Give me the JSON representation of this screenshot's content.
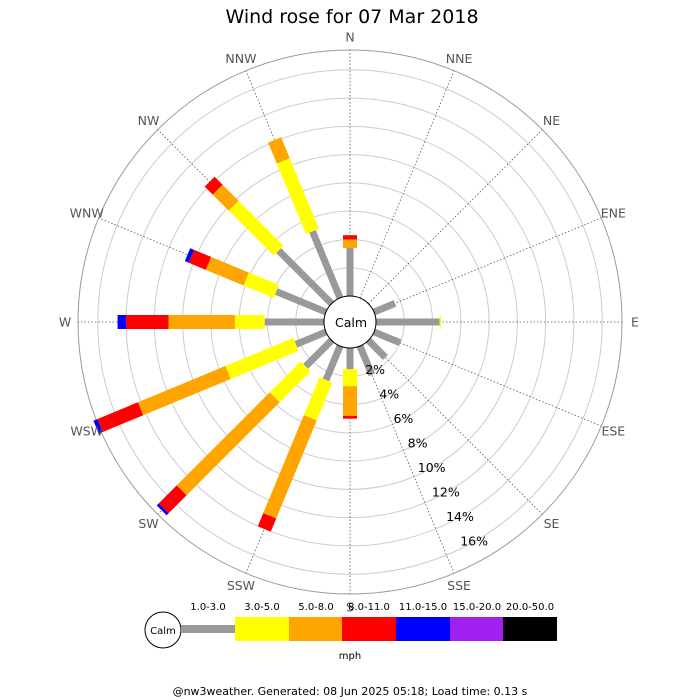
{
  "title": "Wind rose for 07 Mar 2018",
  "footer": "@nw3weather. Generated: 08 Jun 2025 05:18; Load time: 0.13 s",
  "calm_label": "Calm",
  "unit": "mph",
  "chart_data": {
    "type": "wind-rose",
    "directions": [
      "N",
      "NNE",
      "NE",
      "ENE",
      "E",
      "ESE",
      "SE",
      "SSE",
      "S",
      "SSW",
      "SW",
      "WSW",
      "W",
      "WNW",
      "NW",
      "NNW"
    ],
    "radial_tick_labels": [
      "2%",
      "4%",
      "6%",
      "8%",
      "10%",
      "12%",
      "14%",
      "16%"
    ],
    "radial_max_percent": 17.4,
    "speed_bins": [
      {
        "label": "1.0-3.0",
        "color": "#999999"
      },
      {
        "label": "3.0-5.0",
        "color": "#ffff00"
      },
      {
        "label": "5.0-8.0",
        "color": "#ffa500"
      },
      {
        "label": "8.0-11.0",
        "color": "#ff0000"
      },
      {
        "label": "11.0-15.0",
        "color": "#0000ff"
      },
      {
        "label": "15.0-20.0",
        "color": "#a020f0"
      },
      {
        "label": "20.0-50.0",
        "color": "#000000"
      }
    ],
    "series_cumulative_percent": {
      "N": [
        3.4,
        3.4,
        4.0,
        4.3,
        4.3,
        4.3,
        4.3
      ],
      "NNE": [
        0,
        0,
        0,
        0,
        0,
        0,
        0
      ],
      "NE": [
        0,
        0,
        0,
        0,
        0,
        0,
        0
      ],
      "ENE": [
        1.6,
        1.6,
        1.6,
        1.6,
        1.6,
        1.6,
        1.6
      ],
      "E": [
        4.5,
        4.6,
        4.6,
        4.6,
        4.6,
        4.6,
        4.6
      ],
      "ESE": [
        2.0,
        2.0,
        2.0,
        2.0,
        2.0,
        2.0,
        2.0
      ],
      "SE": [
        1.7,
        1.7,
        1.7,
        1.7,
        1.7,
        1.7,
        1.7
      ],
      "SSE": [
        2.2,
        2.2,
        2.2,
        2.2,
        2.2,
        2.2,
        2.2
      ],
      "S": [
        1.5,
        2.7,
        4.8,
        5.0,
        5.0,
        5.0,
        5.0
      ],
      "SSW": [
        2.6,
        5.5,
        13.0,
        14.0,
        14.0,
        14.0,
        14.0
      ],
      "SW": [
        2.6,
        5.7,
        15.0,
        16.8,
        17.0,
        17.0,
        17.0
      ],
      "WSW": [
        2.3,
        7.5,
        14.2,
        17.3,
        17.6,
        17.6,
        17.6
      ],
      "W": [
        4.2,
        6.3,
        11.0,
        14.0,
        14.6,
        14.6,
        14.6
      ],
      "WNW": [
        3.8,
        6.1,
        9.0,
        10.3,
        10.6,
        10.6,
        10.6
      ],
      "NW": [
        5.3,
        9.8,
        11.4,
        12.2,
        12.2,
        12.2,
        12.2
      ],
      "NNW": [
        5.1,
        10.5,
        12.1,
        12.1,
        12.1,
        12.1,
        12.1
      ]
    },
    "calm_percent": 0,
    "grid": true
  }
}
